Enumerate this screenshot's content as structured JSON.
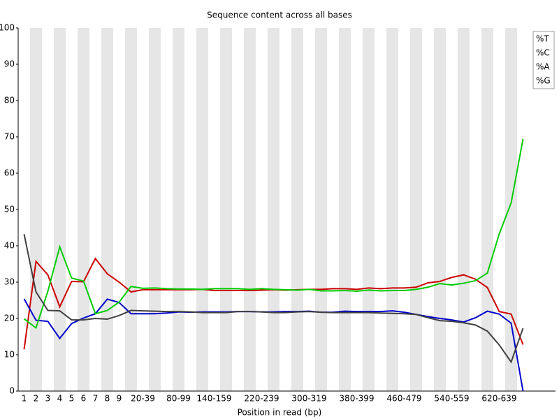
{
  "chart_data": {
    "type": "line",
    "title": "Sequence content across all bases",
    "x_label": "Position in read (bp)",
    "categories": [
      "1",
      "2",
      "3",
      "4",
      "5",
      "6",
      "7",
      "8",
      "9",
      null,
      "20-39",
      null,
      null,
      "80-99",
      null,
      null,
      "140-159",
      null,
      null,
      null,
      "220-239",
      null,
      null,
      null,
      "300-319",
      null,
      null,
      null,
      "380-399",
      null,
      null,
      null,
      "460-479",
      null,
      null,
      null,
      "540-559",
      null,
      null,
      null,
      "620-639",
      null,
      null
    ],
    "series": [
      {
        "name": "%T",
        "color": "#cc0000",
        "values": [
          11.5,
          35.7,
          32,
          23.2,
          30.2,
          30.1,
          36.5,
          32.3,
          30.0,
          27.3,
          27.9,
          27.9,
          27.9,
          27.9,
          27.9,
          28,
          27.7,
          27.7,
          27.7,
          27.7,
          27.8,
          27.9,
          27.8,
          27.9,
          28,
          28,
          28.2,
          28.2,
          28,
          28.4,
          28.2,
          28.4,
          28.4,
          28.6,
          29.8,
          30.2,
          31.3,
          32,
          30.8,
          28.5,
          21.9,
          21.2,
          12.8
        ]
      },
      {
        "name": "%C",
        "color": "#0000cc",
        "values": [
          25.4,
          19.5,
          19.2,
          14.5,
          18.6,
          20.1,
          21.3,
          25.3,
          24.4,
          21.3,
          21.3,
          21.3,
          21.5,
          21.8,
          21.7,
          21.8,
          21.8,
          21.8,
          21.9,
          21.9,
          21.8,
          21.8,
          21.9,
          21.9,
          22,
          21.7,
          21.7,
          22,
          21.9,
          21.9,
          21.9,
          22.1,
          21.7,
          21.1,
          20.5,
          20,
          19.6,
          19,
          20.2,
          22,
          21.2,
          18.7,
          0
        ]
      },
      {
        "name": "%A",
        "color": "#00cc00",
        "values": [
          19.9,
          17.4,
          27.5,
          39.7,
          31.1,
          30.3,
          21.3,
          22.2,
          24.5,
          28.8,
          28.3,
          28.4,
          28.2,
          28.1,
          28.1,
          28,
          28.2,
          28.2,
          28.2,
          28,
          28.2,
          28,
          27.9,
          27.8,
          28,
          27.6,
          27.6,
          27.7,
          27.5,
          27.8,
          27.6,
          27.7,
          27.7,
          28,
          28.6,
          29.6,
          29.2,
          29.7,
          30.4,
          32.5,
          43.3,
          51.8,
          69.4
        ]
      },
      {
        "name": "%G",
        "color": "#404040",
        "values": [
          43.2,
          27.3,
          22.2,
          22.1,
          19.6,
          19.6,
          20,
          19.8,
          20.8,
          22.2,
          22.1,
          22,
          21.9,
          21.9,
          21.8,
          21.6,
          21.6,
          21.6,
          21.9,
          21.9,
          21.8,
          21.6,
          21.6,
          21.8,
          21.9,
          21.7,
          21.6,
          21.6,
          21.6,
          21.6,
          21.5,
          21.4,
          21.3,
          21.1,
          20.2,
          19.4,
          19.2,
          18.8,
          18.2,
          16.5,
          12.7,
          8,
          17.3
        ]
      }
    ],
    "ylim": [
      0,
      100
    ],
    "yticks": [
      0,
      10,
      20,
      30,
      40,
      50,
      60,
      70,
      80,
      90,
      100
    ],
    "legend": "top-right"
  }
}
